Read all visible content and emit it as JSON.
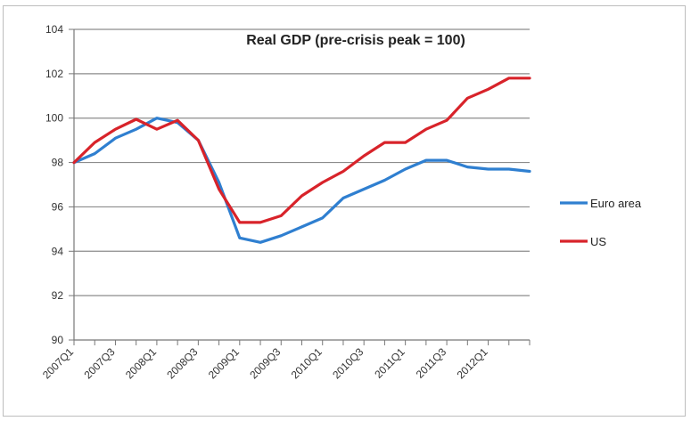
{
  "chart_data": {
    "type": "line",
    "title": "Real GDP (pre-crisis peak = 100)",
    "xlabel": "",
    "ylabel": "",
    "ylim": [
      90,
      104
    ],
    "yticks": [
      90,
      92,
      94,
      96,
      98,
      100,
      102,
      104
    ],
    "grid": true,
    "legend_position": "right",
    "categories": [
      "2007Q1",
      "2007Q2",
      "2007Q3",
      "2007Q4",
      "2008Q1",
      "2008Q2",
      "2008Q3",
      "2008Q4",
      "2009Q1",
      "2009Q2",
      "2009Q3",
      "2009Q4",
      "2010Q1",
      "2010Q2",
      "2010Q3",
      "2010Q4",
      "2011Q1",
      "2011Q2",
      "2011Q3",
      "2011Q4",
      "2012Q1",
      "2012Q2",
      "2012Q3"
    ],
    "tick_labels": [
      "2007Q1",
      "2007Q3",
      "2008Q1",
      "2008Q3",
      "2009Q1",
      "2009Q3",
      "2010Q1",
      "2010Q3",
      "2011Q1",
      "2011Q3",
      "2012Q1"
    ],
    "series": [
      {
        "name": "Euro area",
        "color": "#2f7fd0",
        "values": [
          98.0,
          98.4,
          99.1,
          99.5,
          100.0,
          99.8,
          99.0,
          97.1,
          94.6,
          94.4,
          94.7,
          95.1,
          95.5,
          96.4,
          96.8,
          97.2,
          97.7,
          98.1,
          98.1,
          97.8,
          97.7,
          97.7,
          97.6
        ]
      },
      {
        "name": "US",
        "color": "#d8232a",
        "values": [
          98.0,
          98.9,
          99.5,
          99.95,
          99.5,
          99.9,
          99.0,
          96.8,
          95.3,
          95.3,
          95.6,
          96.5,
          97.1,
          97.6,
          98.3,
          98.9,
          98.9,
          99.5,
          99.9,
          100.9,
          101.3,
          101.8,
          101.8
        ]
      }
    ]
  }
}
